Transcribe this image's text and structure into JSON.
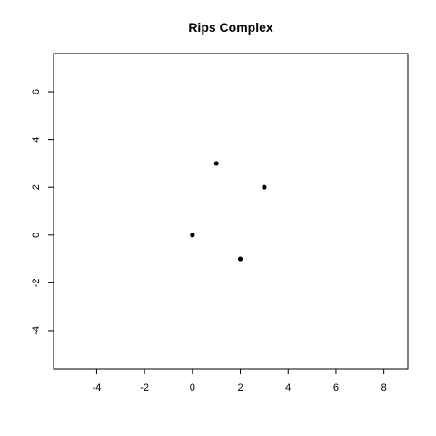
{
  "chart_data": {
    "type": "scatter",
    "title": "Rips Complex",
    "xlabel": "",
    "ylabel": "",
    "xlim": [
      -5.8,
      9.0
    ],
    "ylim": [
      -5.6,
      7.6
    ],
    "x_ticks": [
      -4,
      -2,
      0,
      2,
      4,
      6,
      8
    ],
    "y_ticks": [
      -4,
      -2,
      0,
      2,
      4,
      6
    ],
    "x_tick_labels": [
      "-4",
      "-2",
      "0",
      "2",
      "4",
      "6",
      "8"
    ],
    "y_tick_labels": [
      "-4",
      "-2",
      "0",
      "2",
      "4",
      "6"
    ],
    "grid": false,
    "legend": "none",
    "point_color": "#000000",
    "points": [
      {
        "x": 0,
        "y": 0
      },
      {
        "x": 1,
        "y": 3
      },
      {
        "x": 3,
        "y": 2
      },
      {
        "x": 2,
        "y": -1
      }
    ]
  }
}
